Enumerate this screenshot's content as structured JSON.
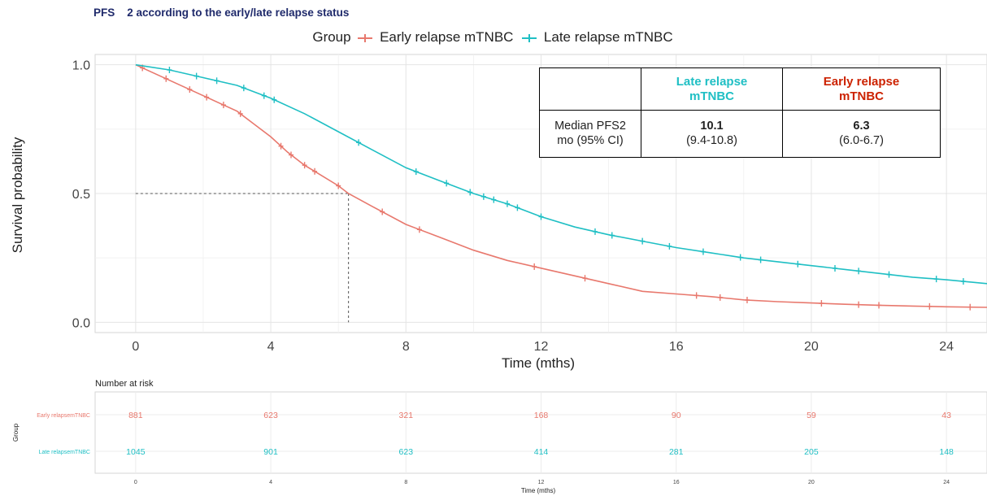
{
  "title": "PFS    2 according to the early/late relapse status",
  "legend": {
    "title": "Group",
    "items": [
      {
        "label": "Early relapse mTNBC",
        "color": "#e8786d"
      },
      {
        "label": "Late relapse mTNBC",
        "color": "#1fbfc4"
      }
    ]
  },
  "median_table": {
    "col_headers": [
      {
        "line1": "Late relapse",
        "line2": "mTNBC",
        "color": "#1fbfc4"
      },
      {
        "line1": "Early relapse",
        "line2": "mTNBC",
        "color": "#cc2200"
      }
    ],
    "row_label_line1": "Median PFS2",
    "row_label_line2": "mo (95% CI)",
    "cells": [
      {
        "median": "10.1",
        "ci": "(9.4-10.8)"
      },
      {
        "median": "6.3",
        "ci": "(6.0-6.7)"
      }
    ]
  },
  "chart_data": [
    {
      "type": "line",
      "subtype": "kaplan-meier",
      "xlabel": "Time (mths)",
      "ylabel": "Survival probability",
      "xlim": [
        -1.2,
        25.2
      ],
      "ylim": [
        -0.04,
        1.04
      ],
      "xticks": [
        0,
        4,
        8,
        12,
        16,
        20,
        24
      ],
      "yticks": [
        0.0,
        0.5,
        1.0
      ],
      "ytick_labels": [
        "0.0",
        "0.5",
        "1.0"
      ],
      "grid": true,
      "median_line": {
        "y": 0.5,
        "x": 6.3
      },
      "series": [
        {
          "name": "Early relapse mTNBC",
          "color": "#e8786d",
          "x": [
            0,
            0.5,
            1,
            1.5,
            2,
            2.5,
            3,
            3.5,
            4,
            4.5,
            5,
            5.5,
            6,
            6.3,
            7,
            8,
            9,
            10,
            11,
            12,
            13,
            14,
            15,
            16,
            17,
            18,
            19,
            20,
            21,
            22,
            23,
            24,
            25.2
          ],
          "y": [
            1.0,
            0.97,
            0.94,
            0.91,
            0.88,
            0.85,
            0.82,
            0.77,
            0.72,
            0.66,
            0.61,
            0.57,
            0.53,
            0.5,
            0.45,
            0.38,
            0.33,
            0.28,
            0.24,
            0.21,
            0.18,
            0.15,
            0.12,
            0.11,
            0.1,
            0.087,
            0.08,
            0.075,
            0.07,
            0.066,
            0.063,
            0.06,
            0.058
          ],
          "censor_x": [
            0.2,
            0.9,
            1.6,
            2.1,
            2.6,
            3.1,
            4.3,
            4.6,
            5.0,
            5.3,
            6.0,
            7.3,
            8.4,
            11.8,
            13.3,
            16.6,
            17.3,
            18.1,
            20.3,
            21.4,
            22.0,
            23.5,
            24.7
          ]
        },
        {
          "name": "Late relapse mTNBC",
          "color": "#1fbfc4",
          "x": [
            0,
            1,
            2,
            3,
            4,
            5,
            6,
            7,
            8,
            9,
            10,
            11,
            12,
            13,
            14,
            15,
            16,
            17,
            18,
            19,
            20,
            21,
            22,
            23,
            24,
            25.2
          ],
          "y": [
            1.0,
            0.98,
            0.95,
            0.92,
            0.87,
            0.81,
            0.74,
            0.67,
            0.6,
            0.55,
            0.5,
            0.46,
            0.41,
            0.37,
            0.34,
            0.315,
            0.29,
            0.27,
            0.25,
            0.235,
            0.22,
            0.205,
            0.19,
            0.175,
            0.165,
            0.15
          ],
          "censor_x": [
            1.0,
            1.8,
            2.4,
            3.2,
            3.8,
            4.1,
            6.6,
            8.3,
            9.2,
            9.9,
            10.3,
            10.6,
            11.0,
            11.3,
            12.0,
            13.6,
            14.1,
            15.0,
            15.8,
            16.8,
            17.9,
            18.5,
            19.6,
            20.7,
            21.4,
            22.3,
            23.7,
            24.5
          ]
        }
      ]
    },
    {
      "type": "table",
      "title": "Number at risk",
      "xlabel": "Time (mths)",
      "ylabel": "Group",
      "xticks": [
        0,
        4,
        8,
        12,
        16,
        20,
        24
      ],
      "rows": [
        {
          "group": "Early relapsemTNBC",
          "color": "#e8786d",
          "values": [
            881,
            623,
            321,
            168,
            90,
            59,
            43
          ]
        },
        {
          "group": "Late relapsemTNBC",
          "color": "#1fbfc4",
          "values": [
            1045,
            901,
            623,
            414,
            281,
            205,
            148
          ]
        }
      ]
    }
  ]
}
